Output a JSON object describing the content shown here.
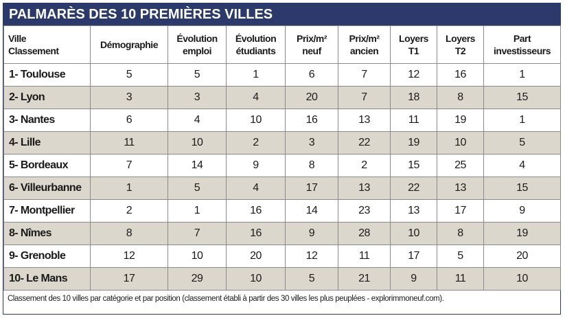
{
  "title": "PALMARÈS DES 10 PREMIÈRES VILLES",
  "headers": [
    [
      "Ville",
      "Classement"
    ],
    [
      "Démographie"
    ],
    [
      "Évolution",
      "emploi"
    ],
    [
      "Évolution",
      "étudiants"
    ],
    [
      "Prix/m² ",
      "neuf"
    ],
    [
      "Prix/m² ",
      "ancien"
    ],
    [
      "Loyers",
      "T1"
    ],
    [
      "Loyers",
      "T2"
    ],
    [
      "Part",
      "investisseurs"
    ]
  ],
  "rows": [
    {
      "city": "1- Toulouse",
      "values": [
        "5",
        "5",
        "1",
        "6",
        "7",
        "12",
        "16",
        "1"
      ]
    },
    {
      "city": "2- Lyon",
      "values": [
        "3",
        "3",
        "4",
        "20",
        "7",
        "18",
        "8",
        "15"
      ]
    },
    {
      "city": "3- Nantes",
      "values": [
        "6",
        "4",
        "10",
        "16",
        "13",
        "11",
        "19",
        "1"
      ]
    },
    {
      "city": "4- Lille",
      "values": [
        "11",
        "10",
        "2",
        "3",
        "22",
        "19",
        "10",
        "5"
      ]
    },
    {
      "city": "5- Bordeaux",
      "values": [
        "7",
        "14",
        "9",
        "8",
        "2",
        "15",
        "25",
        "4"
      ]
    },
    {
      "city": "6- Villeurbanne",
      "values": [
        "1",
        "5",
        "4",
        "17",
        "13",
        "22",
        "13",
        "15"
      ]
    },
    {
      "city": "7- Montpellier",
      "values": [
        "2",
        "1",
        "16",
        "14",
        "23",
        "13",
        "17",
        "9"
      ]
    },
    {
      "city": "8- Nîmes",
      "values": [
        "8",
        "7",
        "16",
        "9",
        "28",
        "10",
        "8",
        "19"
      ]
    },
    {
      "city": "9- Grenoble",
      "values": [
        "12",
        "10",
        "20",
        "12",
        "11",
        "17",
        "5",
        "20"
      ]
    },
    {
      "city": "10- Le Mans",
      "values": [
        "17",
        "29",
        "10",
        "5",
        "21",
        "9",
        "11",
        "10"
      ]
    }
  ],
  "footnote": "Classement des 10 villes par catégorie et par position (classement établi à partir des 30 villes les plus peuplées - explorimmoneuf.com).",
  "colors": {
    "title_bg": "#2b3a6b",
    "alt_row": "#dcd7cc",
    "border": "#8a8a8a"
  }
}
